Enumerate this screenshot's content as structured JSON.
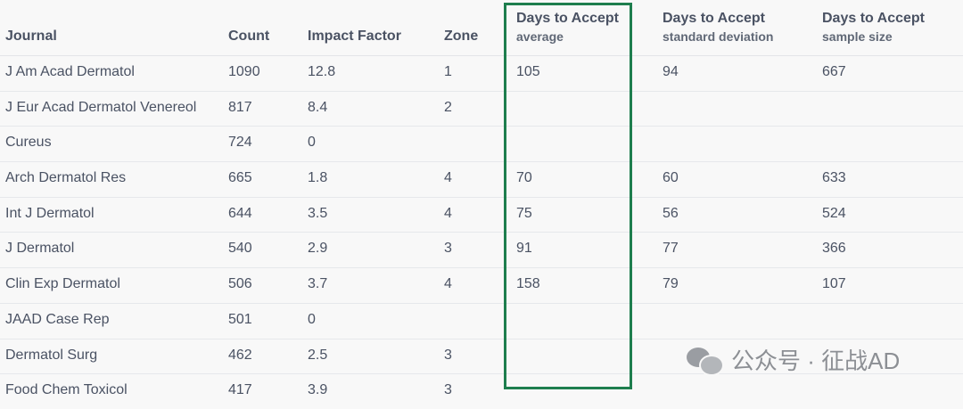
{
  "headers": {
    "journal": "Journal",
    "count": "Count",
    "impact_factor": "Impact Factor",
    "zone": "Zone",
    "avg": {
      "title": "Days to Accept",
      "sub": "average"
    },
    "sd": {
      "title": "Days to Accept",
      "sub": "standard deviation"
    },
    "n": {
      "title": "Days to Accept",
      "sub": "sample size"
    }
  },
  "rows": [
    {
      "journal": "J Am Acad Dermatol",
      "count": "1090",
      "impact_factor": "12.8",
      "zone": "1",
      "avg": "105",
      "sd": "94",
      "n": "667"
    },
    {
      "journal": "J Eur Acad Dermatol Venereol",
      "count": "817",
      "impact_factor": "8.4",
      "zone": "2",
      "avg": "",
      "sd": "",
      "n": ""
    },
    {
      "journal": "Cureus",
      "count": "724",
      "impact_factor": "0",
      "zone": "",
      "avg": "",
      "sd": "",
      "n": ""
    },
    {
      "journal": "Arch Dermatol Res",
      "count": "665",
      "impact_factor": "1.8",
      "zone": "4",
      "avg": "70",
      "sd": "60",
      "n": "633"
    },
    {
      "journal": "Int J Dermatol",
      "count": "644",
      "impact_factor": "3.5",
      "zone": "4",
      "avg": "75",
      "sd": "56",
      "n": "524"
    },
    {
      "journal": "J Dermatol",
      "count": "540",
      "impact_factor": "2.9",
      "zone": "3",
      "avg": "91",
      "sd": "77",
      "n": "366"
    },
    {
      "journal": "Clin Exp Dermatol",
      "count": "506",
      "impact_factor": "3.7",
      "zone": "4",
      "avg": "158",
      "sd": "79",
      "n": "107"
    },
    {
      "journal": "JAAD Case Rep",
      "count": "501",
      "impact_factor": "0",
      "zone": "",
      "avg": "",
      "sd": "",
      "n": ""
    },
    {
      "journal": "Dermatol Surg",
      "count": "462",
      "impact_factor": "2.5",
      "zone": "3",
      "avg": "",
      "sd": "",
      "n": ""
    },
    {
      "journal": "Food Chem Toxicol",
      "count": "417",
      "impact_factor": "3.9",
      "zone": "3",
      "avg": "",
      "sd": "",
      "n": ""
    }
  ],
  "watermark": {
    "text": "公众号 · 征战AD",
    "icon": "wechat-icon"
  },
  "colors": {
    "highlight_border": "#1e7e4e"
  }
}
